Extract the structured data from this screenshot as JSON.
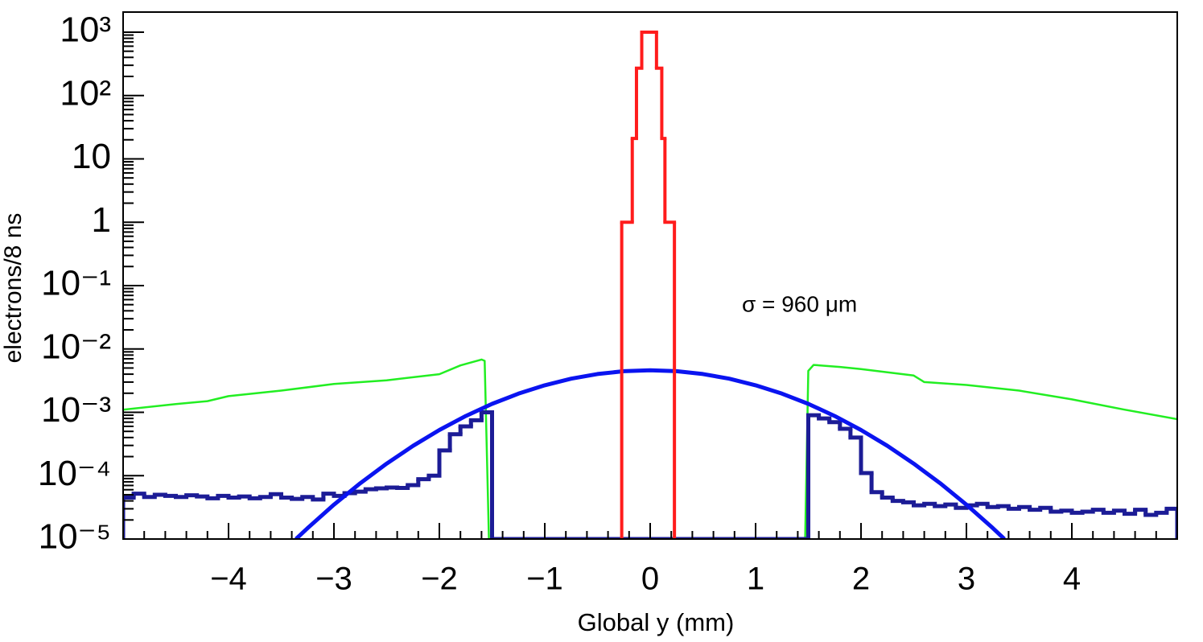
{
  "chart_data": {
    "type": "histogram",
    "xlabel": "Global y (mm)",
    "ylabel": "electrons/8 ns",
    "annotation": "σ = 960 μm",
    "ylog": true,
    "grid": false,
    "xlim": [
      -5,
      5
    ],
    "ylim": [
      1e-05,
      2075
    ],
    "xticks": [
      {
        "value": -4,
        "label": "−4"
      },
      {
        "value": -3,
        "label": "−3"
      },
      {
        "value": -2,
        "label": "−2"
      },
      {
        "value": -1,
        "label": "−1"
      },
      0,
      1,
      2,
      3,
      4
    ],
    "yticks": [
      {
        "value": 1e-05,
        "label": "10⁻⁵"
      },
      {
        "value": 0.0001,
        "label": "10⁻⁴"
      },
      {
        "value": 0.001,
        "label": "10⁻³"
      },
      {
        "value": 0.01,
        "label": "10⁻²"
      },
      {
        "value": 0.1,
        "label": "10⁻¹"
      },
      1,
      10,
      {
        "value": 100,
        "label": "10²"
      },
      {
        "value": 1000,
        "label": "10³"
      }
    ],
    "series": [
      {
        "type": "line",
        "color": "#22ee22",
        "x": [
          -5,
          -4.5,
          -4.2,
          -4.0,
          -3.5,
          -3.0,
          -2.5,
          -2.0,
          -1.8,
          -1.6,
          -1.57,
          -1.53,
          null,
          1.47,
          1.5,
          1.55,
          1.8,
          2.0,
          2.5,
          2.6,
          3.0,
          3.5,
          4.0,
          4.5,
          5.0
        ],
        "values": [
          0.0011,
          0.00135,
          0.0015,
          0.0018,
          0.0022,
          0.0028,
          0.0032,
          0.004,
          0.0055,
          0.0068,
          0.0065,
          1e-05,
          null,
          1e-05,
          0.0045,
          0.0056,
          0.0052,
          0.0048,
          0.0038,
          0.003,
          0.0027,
          0.0022,
          0.0016,
          0.0011,
          0.00078
        ]
      },
      {
        "type": "histogram",
        "color": "#1c1c96",
        "bins": [
          -5.0,
          -4.9,
          -4.8,
          -4.7,
          -4.6,
          -4.5,
          -4.4,
          -4.3,
          -4.2,
          -4.1,
          -4.0,
          -3.9,
          -3.8,
          -3.7,
          -3.6,
          -3.5,
          -3.4,
          -3.3,
          -3.2,
          -3.1,
          -3.0,
          -2.9,
          -2.8,
          -2.7,
          -2.6,
          -2.5,
          -2.4,
          -2.3,
          -2.2,
          -2.1,
          -2.0,
          -1.9,
          -1.8,
          -1.7,
          -1.6,
          -1.5,
          -1.4,
          -1.3,
          -1.2,
          -1.1,
          -1.0,
          -0.9,
          -0.8,
          -0.7,
          -0.6,
          -0.5,
          -0.4,
          -0.3,
          -0.2,
          -0.1,
          0.0,
          0.1,
          0.2,
          0.3,
          0.4,
          0.5,
          0.6,
          0.7,
          0.8,
          0.9,
          1.0,
          1.1,
          1.2,
          1.3,
          1.4,
          1.5,
          1.6,
          1.7,
          1.8,
          1.9,
          2.0,
          2.1,
          2.2,
          2.3,
          2.4,
          2.5,
          2.6,
          2.7,
          2.8,
          2.9,
          3.0,
          3.1,
          3.2,
          3.3,
          3.4,
          3.5,
          3.6,
          3.7,
          3.8,
          3.9,
          4.0,
          4.1,
          4.2,
          4.3,
          4.4,
          4.5,
          4.6,
          4.7,
          4.8,
          4.9,
          5.0
        ],
        "values": [
          4.5e-05,
          5.2e-05,
          4.6e-05,
          5e-05,
          4.8e-05,
          4.6e-05,
          4.9e-05,
          4.7e-05,
          4.4e-05,
          4.8e-05,
          4.5e-05,
          4.7e-05,
          4.4e-05,
          4.6e-05,
          5.1e-05,
          4.5e-05,
          4.3e-05,
          4.6e-05,
          4.2e-05,
          5.2e-05,
          4.8e-05,
          5.3e-05,
          5.6e-05,
          6.1e-05,
          6.3e-05,
          6.5e-05,
          6.4e-05,
          7.1e-05,
          8.8e-05,
          0.0001,
          0.00025,
          0.00045,
          0.0006,
          0.00075,
          0.001,
          null,
          null,
          null,
          null,
          null,
          null,
          null,
          null,
          null,
          null,
          null,
          null,
          null,
          null,
          null,
          null,
          null,
          null,
          null,
          null,
          null,
          null,
          null,
          null,
          null,
          null,
          null,
          null,
          null,
          null,
          0.0009,
          0.0008,
          0.0007,
          0.00055,
          0.0004,
          0.00011,
          5.5e-05,
          4.5e-05,
          4e-05,
          3.8e-05,
          3.4e-05,
          3.6e-05,
          3.3e-05,
          3.5e-05,
          3.1e-05,
          3.4e-05,
          3.6e-05,
          3.2e-05,
          3.3e-05,
          3e-05,
          3.2e-05,
          2.9e-05,
          3.1e-05,
          2.7e-05,
          2.8e-05,
          2.6e-05,
          2.7e-05,
          2.9e-05,
          2.6e-05,
          2.8e-05,
          2.5e-05,
          2.9e-05,
          2.4e-05,
          2.6e-05,
          3e-05
        ]
      },
      {
        "type": "line",
        "color": "#0a14f0",
        "x": [
          -3.36,
          -3.25,
          -3.0,
          -2.75,
          -2.5,
          -2.25,
          -2.0,
          -1.75,
          -1.5,
          -1.25,
          -1.0,
          -0.75,
          -0.5,
          -0.25,
          0,
          0.25,
          0.5,
          0.75,
          1.0,
          1.25,
          1.5,
          1.75,
          2.0,
          2.25,
          2.5,
          2.75,
          3.0,
          3.25,
          3.36
        ],
        "values": [
          1e-05,
          1.49e-05,
          3.49e-05,
          7.6e-05,
          0.000155,
          0.000295,
          0.000525,
          0.000873,
          0.00136,
          0.00197,
          0.00267,
          0.00339,
          0.00402,
          0.00445,
          0.0046,
          0.00445,
          0.00402,
          0.00339,
          0.00267,
          0.00197,
          0.00136,
          0.000873,
          0.000525,
          0.000295,
          0.000155,
          7.6e-05,
          3.49e-05,
          1.49e-05,
          1e-05
        ]
      },
      {
        "type": "histogram",
        "color": "#ff1c1c",
        "bins": [
          -0.27,
          -0.17,
          -0.13,
          -0.08,
          0.06,
          0.11,
          0.14,
          0.23
        ],
        "values": [
          1,
          21,
          270,
          1000,
          270,
          21,
          1
        ]
      }
    ]
  }
}
